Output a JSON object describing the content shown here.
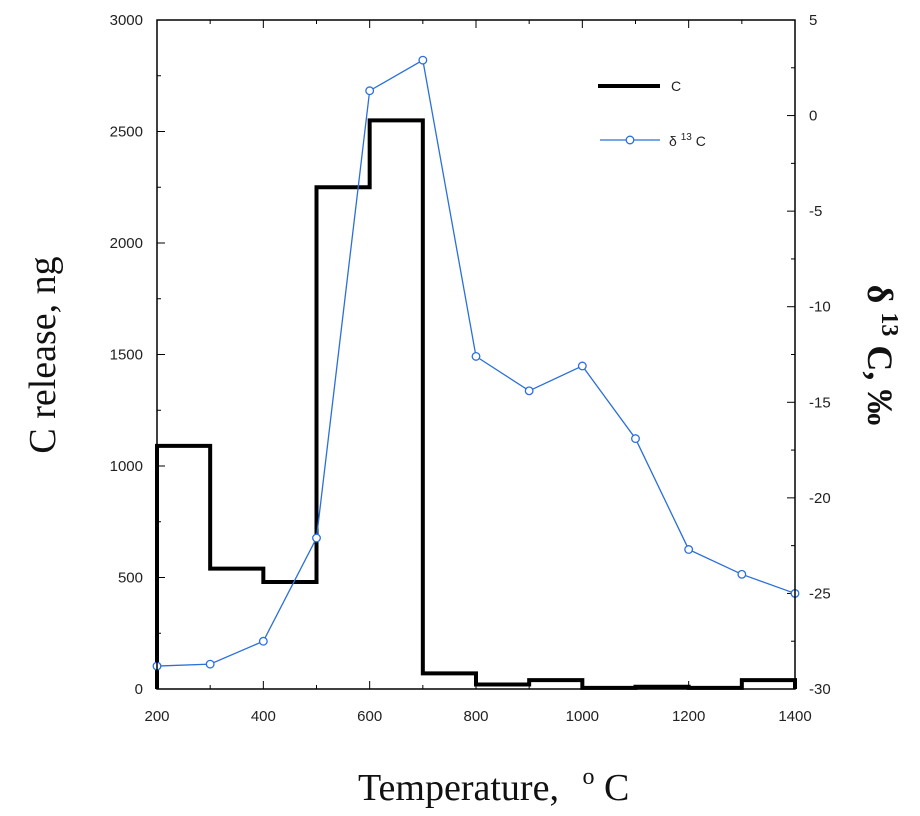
{
  "chart_data": {
    "type": "line",
    "x_axis": {
      "label": "Temperature,",
      "unit_sup": "o",
      "unit": "C",
      "range": [
        200,
        1400
      ],
      "ticks": [
        200,
        400,
        600,
        800,
        1000,
        1200,
        1400
      ],
      "tick_labels": [
        "200",
        "400",
        "600",
        "800",
        "1000",
        "1200",
        "1400"
      ]
    },
    "y_left": {
      "label": "C release, ng",
      "range": [
        0,
        3000
      ],
      "ticks": [
        0,
        500,
        1000,
        1500,
        2000,
        2500,
        3000
      ],
      "tick_labels": [
        "0",
        "500",
        "1000",
        "1500",
        "2000",
        "2500",
        "3000"
      ]
    },
    "y_right": {
      "label_delta": "δ",
      "label_sup": "13",
      "label_rest": "C, ‰",
      "range": [
        -30,
        5
      ],
      "ticks": [
        -30,
        -25,
        -20,
        -15,
        -10,
        -5,
        0,
        5
      ],
      "tick_labels": [
        "-30",
        "-25",
        "-20",
        "-15",
        "-10",
        "-5",
        "0",
        "5"
      ]
    },
    "series": [
      {
        "name": "C",
        "axis": "left",
        "style": "step",
        "color": "#000000",
        "bins": [
          {
            "x0": 200,
            "x1": 300,
            "y": 1090
          },
          {
            "x0": 300,
            "x1": 400,
            "y": 540
          },
          {
            "x0": 400,
            "x1": 500,
            "y": 480
          },
          {
            "x0": 500,
            "x1": 600,
            "y": 2250
          },
          {
            "x0": 600,
            "x1": 700,
            "y": 2550
          },
          {
            "x0": 700,
            "x1": 800,
            "y": 70
          },
          {
            "x0": 800,
            "x1": 900,
            "y": 20
          },
          {
            "x0": 900,
            "x1": 1000,
            "y": 40
          },
          {
            "x0": 1000,
            "x1": 1100,
            "y": 5
          },
          {
            "x0": 1100,
            "x1": 1200,
            "y": 10
          },
          {
            "x0": 1200,
            "x1": 1300,
            "y": 5
          },
          {
            "x0": 1300,
            "x1": 1400,
            "y": 40
          }
        ]
      },
      {
        "name_delta": "δ",
        "name_sup": "13",
        "name_rest": "C",
        "axis": "right",
        "style": "line-markers",
        "color": "#2a6fdb",
        "points": [
          {
            "x": 200,
            "y": -28.8
          },
          {
            "x": 300,
            "y": -28.7
          },
          {
            "x": 400,
            "y": -27.5
          },
          {
            "x": 500,
            "y": -22.1
          },
          {
            "x": 600,
            "y": 1.3
          },
          {
            "x": 700,
            "y": 2.9
          },
          {
            "x": 800,
            "y": -12.6
          },
          {
            "x": 900,
            "y": -14.4
          },
          {
            "x": 1000,
            "y": -13.1
          },
          {
            "x": 1100,
            "y": -16.9
          },
          {
            "x": 1200,
            "y": -22.7
          },
          {
            "x": 1300,
            "y": -24.0
          },
          {
            "x": 1400,
            "y": -25.0
          }
        ]
      }
    ],
    "legend_position": "top-right"
  }
}
